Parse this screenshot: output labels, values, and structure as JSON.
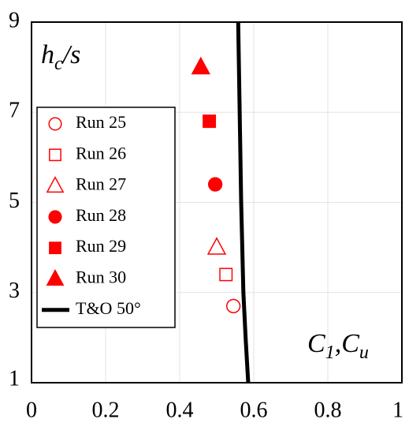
{
  "chart_data": {
    "type": "scatter",
    "xlabel_parts": [
      {
        "text": "C"
      },
      {
        "text": "1",
        "sub": true
      },
      {
        "text": ",C"
      },
      {
        "text": "u",
        "sub": true
      }
    ],
    "ylabel_parts": [
      {
        "text": "h"
      },
      {
        "text": "c",
        "sub": true
      },
      {
        "text": "/s"
      }
    ],
    "xlim": [
      0,
      1
    ],
    "ylim": [
      1,
      9
    ],
    "xticks": [
      0,
      0.2,
      0.4,
      0.6,
      0.8,
      1
    ],
    "yticks": [
      1,
      3,
      5,
      7,
      9
    ],
    "grid": true,
    "legend": "upper left",
    "series": [
      {
        "name": "Run 25",
        "type": "scatter",
        "marker": "circle",
        "filled": false,
        "color": "#ff0000",
        "x": [
          0.545
        ],
        "y": [
          2.7
        ]
      },
      {
        "name": "Run 26",
        "type": "scatter",
        "marker": "square",
        "filled": false,
        "color": "#ff0000",
        "x": [
          0.525
        ],
        "y": [
          3.4
        ]
      },
      {
        "name": "Run 27",
        "type": "scatter",
        "marker": "triangle",
        "filled": false,
        "color": "#ff0000",
        "x": [
          0.5
        ],
        "y": [
          4.0
        ]
      },
      {
        "name": "Run 28",
        "type": "scatter",
        "marker": "circle",
        "filled": true,
        "color": "#ff0000",
        "x": [
          0.496
        ],
        "y": [
          5.4
        ]
      },
      {
        "name": "Run 29",
        "type": "scatter",
        "marker": "square",
        "filled": true,
        "color": "#ff0000",
        "x": [
          0.48
        ],
        "y": [
          6.8
        ]
      },
      {
        "name": "Run 30",
        "type": "scatter",
        "marker": "triangle",
        "filled": true,
        "color": "#ff0000",
        "x": [
          0.457
        ],
        "y": [
          8.0
        ]
      },
      {
        "name": "T&O 50°",
        "type": "line",
        "color": "#000000",
        "x": [
          0.558,
          0.562,
          0.566,
          0.572,
          0.578,
          0.585
        ],
        "y": [
          9,
          7,
          5,
          3,
          2,
          1
        ]
      }
    ]
  }
}
